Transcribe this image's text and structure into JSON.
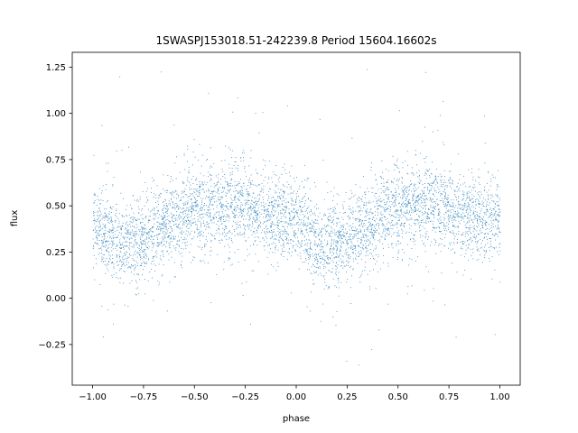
{
  "chart_data": {
    "type": "scatter",
    "title": "1SWASPJ153018.51-242239.8 Period 15604.16602s",
    "xlabel": "phase",
    "ylabel": "flux",
    "xlim": [
      -1.1,
      1.1
    ],
    "ylim": [
      -0.47,
      1.33
    ],
    "xticks": [
      -1.0,
      -0.75,
      -0.5,
      -0.25,
      0.0,
      0.25,
      0.5,
      0.75,
      1.0
    ],
    "xtick_labels": [
      "−1.00",
      "−0.75",
      "−0.50",
      "−0.25",
      "0.00",
      "0.25",
      "0.50",
      "0.75",
      "1.00"
    ],
    "yticks": [
      -0.25,
      0.0,
      0.25,
      0.5,
      0.75,
      1.0,
      1.25
    ],
    "ytick_labels": [
      "−0.25",
      "0.00",
      "0.25",
      "0.50",
      "0.75",
      "1.00",
      "1.25"
    ],
    "grid": false,
    "marker_color": "#1f77b4",
    "phase_range": [
      -1.0,
      1.0
    ],
    "profile": {
      "phase": [
        0.0,
        0.1,
        0.2,
        0.3,
        0.4,
        0.5,
        0.6,
        0.7,
        0.8,
        0.9,
        1.0
      ],
      "median_flux": [
        0.42,
        0.31,
        0.3,
        0.36,
        0.44,
        0.48,
        0.5,
        0.5,
        0.47,
        0.44,
        0.42
      ],
      "scatter_sigma": 0.11
    },
    "outlier_range": [
      -0.38,
      1.25
    ]
  }
}
